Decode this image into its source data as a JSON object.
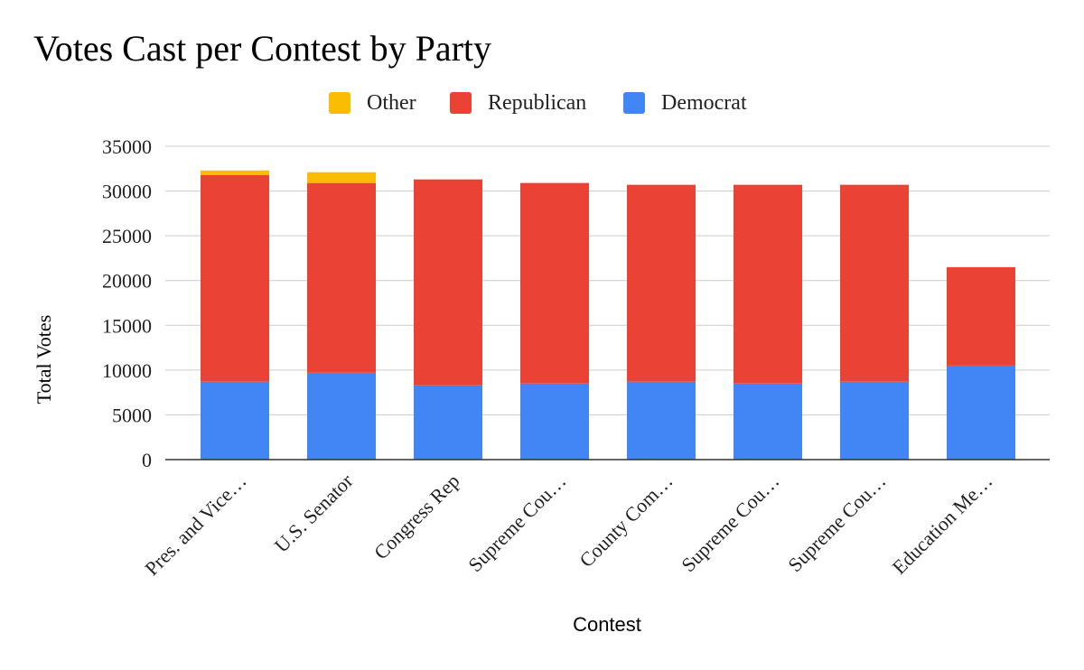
{
  "chart_data": {
    "type": "bar",
    "stacked": true,
    "title": "Votes Cast per Contest by Party",
    "xlabel": "Contest",
    "ylabel": "Total Votes",
    "ylim": [
      0,
      35000
    ],
    "yticks": [
      0,
      5000,
      10000,
      15000,
      20000,
      25000,
      30000,
      35000
    ],
    "grid": true,
    "legend_position": "top",
    "categories": [
      "Pres. and Vice…",
      "U.S. Senator",
      "Congress Rep",
      "Supreme Cou…",
      "County Com…",
      "Supreme Cou…",
      "Supreme Cou…",
      "Education Me…"
    ],
    "series": [
      {
        "name": "Democrat",
        "color": "#4285f4",
        "values": [
          8700,
          9700,
          8300,
          8500,
          8700,
          8500,
          8700,
          10500
        ]
      },
      {
        "name": "Republican",
        "color": "#ea4335",
        "values": [
          23100,
          21200,
          23000,
          22400,
          22000,
          22200,
          22000,
          11000
        ]
      },
      {
        "name": "Other",
        "color": "#fbbc04",
        "values": [
          500,
          1200,
          0,
          0,
          0,
          0,
          0,
          0
        ]
      }
    ],
    "legend_order": [
      "Other",
      "Republican",
      "Democrat"
    ]
  }
}
